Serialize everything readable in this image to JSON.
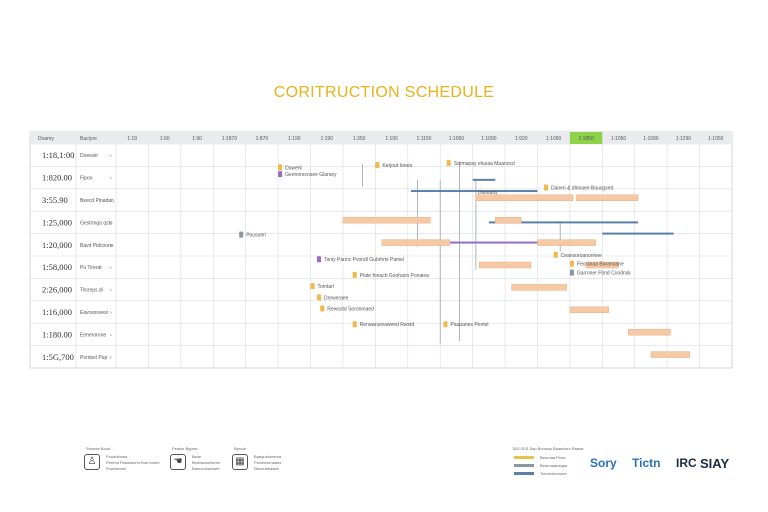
{
  "page": {
    "title": "CORITRUCTION SCHEDULE",
    "colors": {
      "title": "#e8b21a",
      "task_bar": "#f6c9a6",
      "milestone": "#f2b84a",
      "link": "#8b95a3",
      "highlight_col": "#8ed24a",
      "blue_bar": "#5b7fa8",
      "purple_bar": "#9a6ac6"
    }
  },
  "chart_data": {
    "type": "gantt",
    "title": "CORITRUCTION SCHEDULE",
    "header": {
      "col1": "Doamy",
      "col2": "Bactyre"
    },
    "timeline_columns": [
      "1:19",
      "1:90",
      "1:90",
      "1:1870",
      "1:870",
      "1:190",
      "1:190",
      "1:350",
      "1:190",
      "1:1150",
      "1:1050",
      "1:1090",
      "1:920",
      "1:1090",
      "1:1850",
      "1:1050",
      "1:1090",
      "1:1290",
      "1:1050"
    ],
    "highlight_column": 14,
    "rows": [
      {
        "value": "1:18,1:00",
        "label": "Doeearr"
      },
      {
        "value": "1:820.00",
        "label": "Fipoo"
      },
      {
        "value": "3:55.90",
        "label": "Beecd Pinadso"
      },
      {
        "value": "1:25,000",
        "label": "Gestrmga qsts"
      },
      {
        "value": "1:20,000",
        "label": "Bavd Pidcoons"
      },
      {
        "value": "1:58,000",
        "label": "Pu Tirerat"
      },
      {
        "value": "2:26,000",
        "label": "Tlezeps di"
      },
      {
        "value": "1:16,000",
        "label": "Eavcessvesr"
      },
      {
        "value": "1:180.00",
        "label": "Eenerorone"
      },
      {
        "value": "1:5G,700",
        "label": "Pordsel Pup"
      }
    ],
    "tasks": [
      {
        "row": 2,
        "start": 11.1,
        "end": 14.1,
        "text": "Dasoudy"
      },
      {
        "row": 2,
        "start": 14.2,
        "end": 16.1,
        "text": ""
      },
      {
        "row": 3,
        "start": 7.0,
        "end": 9.7,
        "text": ""
      },
      {
        "row": 3,
        "start": 11.7,
        "end": 12.5,
        "text": ""
      },
      {
        "row": 4,
        "start": 8.2,
        "end": 10.3,
        "text": ""
      },
      {
        "row": 4,
        "start": 13.0,
        "end": 14.8,
        "text": ""
      },
      {
        "row": 5,
        "start": 11.2,
        "end": 12.8,
        "text": ""
      },
      {
        "row": 5,
        "start": 14.5,
        "end": 15.5,
        "text": ""
      },
      {
        "row": 6,
        "start": 12.2,
        "end": 13.9,
        "text": ""
      },
      {
        "row": 7,
        "start": 14.0,
        "end": 15.2,
        "text": ""
      },
      {
        "row": 8,
        "start": 15.8,
        "end": 17.1,
        "text": ""
      },
      {
        "row": 9,
        "start": 16.5,
        "end": 17.7,
        "text": ""
      }
    ],
    "lines": [
      {
        "row": 2.1,
        "start": 9.1,
        "end": 13.0,
        "color": "blue"
      },
      {
        "row": 3.5,
        "start": 11.5,
        "end": 16.1,
        "color": "blue"
      },
      {
        "row": 4.0,
        "start": 15.0,
        "end": 17.2,
        "color": "blue"
      },
      {
        "row": 4.4,
        "start": 10.2,
        "end": 13.6,
        "color": "purple"
      },
      {
        "row": 1.6,
        "start": 11.0,
        "end": 11.7,
        "color": "blue"
      }
    ],
    "milestones": [
      {
        "row": 1.0,
        "x": 5.0,
        "text": "Dawerk",
        "color": "#f2b84a"
      },
      {
        "row": 1.3,
        "x": 5.0,
        "text": "Geonorecnsee Glarsey",
        "color": "#9a6ac6"
      },
      {
        "row": 0.9,
        "x": 8.0,
        "text": "Kerjout Ionea",
        "color": "#f2b84a"
      },
      {
        "row": 0.8,
        "x": 10.2,
        "text": "Sormapay ehuiaa Maanocd",
        "color": "#f2b84a"
      },
      {
        "row": 1.9,
        "x": 13.2,
        "text": "Danen & dlnnaee Bousgsed",
        "color": "#f2b84a"
      },
      {
        "row": 5.1,
        "x": 6.2,
        "text": "Taniy Pannc Pvondl Gubrhmi Pamel",
        "color": "#9a6ac6"
      },
      {
        "row": 5.8,
        "x": 7.3,
        "text": "Piate fonacb Goohacn Ponaiea",
        "color": "#f2b84a"
      },
      {
        "row": 6.3,
        "x": 6.0,
        "text": "Tomtarl",
        "color": "#f2b84a"
      },
      {
        "row": 6.8,
        "x": 6.2,
        "text": "Dreweraee",
        "color": "#f2b84a"
      },
      {
        "row": 7.3,
        "x": 6.3,
        "text": "Rewsotd Soronmaed",
        "color": "#f2b84a"
      },
      {
        "row": 8.0,
        "x": 7.3,
        "text": "Renawrareaweed Rwxtd",
        "color": "#f2b84a"
      },
      {
        "row": 8.0,
        "x": 10.1,
        "text": "Paauanes Pentel",
        "color": "#f2b84a"
      },
      {
        "row": 4.9,
        "x": 13.5,
        "text": "Ceansoroanonnee",
        "color": "#f2b84a"
      },
      {
        "row": 5.3,
        "x": 14.0,
        "text": "Fecranaa Baranoane",
        "color": "#f2b84a"
      },
      {
        "row": 5.7,
        "x": 14.0,
        "text": "Garroner Fbnd Coodnsk",
        "color": "#8b95a3"
      },
      {
        "row": 4.0,
        "x": 3.8,
        "text": "Pousoen",
        "color": "#8b95a3"
      }
    ]
  },
  "footer": {
    "legend": [
      {
        "icon": "worker-icon",
        "title": "Seoeee Bood",
        "lines": [
          "Pooadiooea",
          "Peremt Pstoelacrm Bne boree",
          "Ponesenrw"
        ]
      },
      {
        "icon": "hand-icon",
        "title": "Peaioe Bypew",
        "lines": [
          "Bsoe",
          "Bedzaaroesmm",
          "Baecudoweaee"
        ]
      },
      {
        "icon": "calendar-icon",
        "title": "Bprodr",
        "lines": [
          "Baaqueiunerea",
          "Psolensenaaee",
          "Nkonueeaaee"
        ]
      }
    ],
    "swatches": [
      {
        "label": "Beernaa Pnoe",
        "color": "#e8c34a"
      },
      {
        "label": "Bearmaansqaa",
        "color": "#8b95a3"
      },
      {
        "label": "Tlemedennuee",
        "color": "#5b7fa8"
      }
    ],
    "swatch_header": "TAS 0DS  Sap   Bonwoy Bsaeclorc Raaoe",
    "brands": [
      "Sory",
      "Tictn",
      "IRC",
      "SIAY"
    ]
  }
}
